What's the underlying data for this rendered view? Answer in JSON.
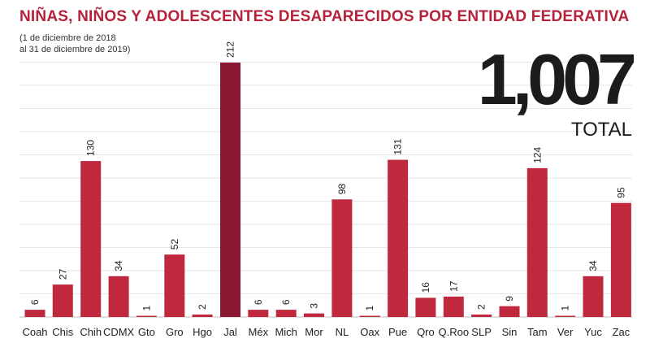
{
  "header": {
    "title": "NIÑAS, NIÑOS Y ADOLESCENTES DESAPARECIDOS POR ENTIDAD FEDERATIVA",
    "subtitle_line1": "(1 de diciembre de 2018",
    "subtitle_line2": "al 31 de diciembre de 2019)"
  },
  "total": {
    "value": "1,007",
    "label": "TOTAL"
  },
  "colors": {
    "bar": "#c0293d",
    "highlight_bar": "#8a1833",
    "title": "#b5223a",
    "grid": "#e6e6e6"
  },
  "chart_data": {
    "type": "bar",
    "title": "NIÑAS, NIÑOS Y ADOLESCENTES DESAPARECIDOS POR ENTIDAD FEDERATIVA",
    "xlabel": "",
    "ylabel": "",
    "ylim": [
      0,
      212
    ],
    "grid": true,
    "categories": [
      "Coah",
      "Chis",
      "Chih",
      "CDMX",
      "Gto",
      "Gro",
      "Hgo",
      "Jal",
      "Méx",
      "Mich",
      "Mor",
      "NL",
      "Oax",
      "Pue",
      "Qro",
      "Q.Roo",
      "SLP",
      "Sin",
      "Tam",
      "Ver",
      "Yuc",
      "Zac"
    ],
    "values": [
      6,
      27,
      130,
      34,
      1,
      52,
      2,
      212,
      6,
      6,
      3,
      98,
      1,
      131,
      16,
      17,
      2,
      9,
      124,
      1,
      34,
      95
    ],
    "value_labels": [
      "6",
      "27",
      "130",
      "34",
      "1",
      "52",
      "2",
      "212",
      "6",
      "6",
      "3",
      "98",
      "1",
      "131",
      "16",
      "17",
      "2",
      "9",
      "124",
      "1",
      "34",
      "95"
    ],
    "highlight_category": "Jal"
  }
}
